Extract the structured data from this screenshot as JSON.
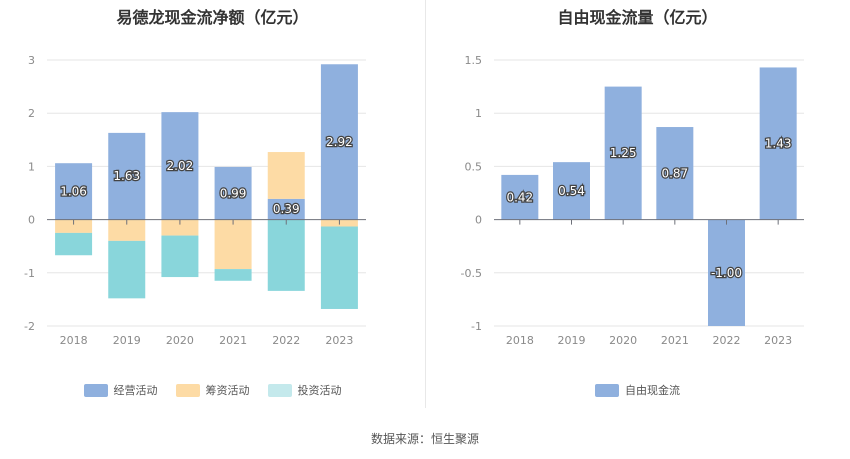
{
  "chart_data": [
    {
      "type": "bar",
      "stacked": true,
      "title": "易德龙现金流净额（亿元）",
      "categories": [
        "2018",
        "2019",
        "2020",
        "2021",
        "2022",
        "2023"
      ],
      "ylim": [
        -2,
        3
      ],
      "yticks": [
        3,
        2,
        1,
        0,
        -1,
        -2
      ],
      "series": [
        {
          "name": "经营活动",
          "color": "#8fb0de",
          "values": [
            1.06,
            1.63,
            2.02,
            0.99,
            0.39,
            2.92
          ],
          "labels": [
            "1.06",
            "1.63",
            "2.02",
            "0.99",
            "0.39",
            "2.92"
          ]
        },
        {
          "name": "筹资活动",
          "color": "#fddba5",
          "values": [
            -0.25,
            -0.4,
            -0.3,
            -0.93,
            0.88,
            -0.13
          ]
        },
        {
          "name": "投资活动",
          "color": "#89d6db",
          "values": [
            -0.42,
            -1.08,
            -0.78,
            -0.22,
            -1.34,
            -1.55
          ]
        }
      ],
      "legend_position": "bottom"
    },
    {
      "type": "bar",
      "title": "自由现金流量（亿元）",
      "categories": [
        "2018",
        "2019",
        "2020",
        "2021",
        "2022",
        "2023"
      ],
      "ylim": [
        -1,
        1.5
      ],
      "yticks": [
        1.5,
        1,
        0.5,
        0,
        -0.5,
        -1
      ],
      "series": [
        {
          "name": "自由现金流",
          "color": "#8fb0de",
          "values": [
            0.42,
            0.54,
            1.25,
            0.87,
            -1.0,
            1.43
          ],
          "labels": [
            "0.42",
            "0.54",
            "1.25",
            "0.87",
            "-1.00",
            "1.43"
          ]
        }
      ],
      "legend_position": "bottom"
    }
  ],
  "legend_swatch_colors": {
    "投资活动": "#c4e9ec"
  },
  "source": "数据来源：恒生聚源"
}
